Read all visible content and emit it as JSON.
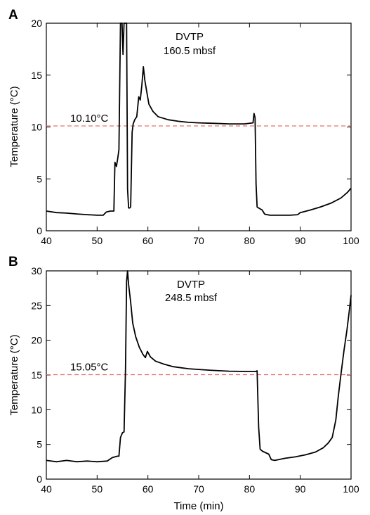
{
  "chart_data": [
    {
      "panel": "A",
      "type": "line",
      "title": "",
      "annotation": [
        "DVTP",
        "160.5 mbsf"
      ],
      "xlabel": "",
      "ylabel": "Temperature (°C)",
      "xlim": [
        40,
        100
      ],
      "ylim": [
        0,
        20
      ],
      "xticks": [
        40,
        50,
        60,
        70,
        80,
        90,
        100
      ],
      "yticks": [
        0,
        5,
        10,
        15,
        20
      ],
      "reference": {
        "value": 10.1,
        "label": "10.10°C",
        "color": "#e8706a"
      },
      "series": [
        {
          "color": "#000000",
          "x": [
            40,
            42,
            44,
            46,
            48,
            50,
            51.2,
            51.8,
            52.6,
            53.3,
            53.5,
            53.8,
            54.0,
            54.3,
            54.6,
            54.9,
            55.1,
            55.3,
            55.6,
            55.8,
            56.0,
            56.2,
            56.4,
            56.6,
            56.9,
            57.1,
            57.4,
            57.8,
            58.2,
            58.5,
            58.8,
            59.1,
            59.4,
            59.7,
            60.2,
            61,
            62,
            64,
            66,
            68,
            70,
            73,
            76,
            79,
            80.7,
            80.9,
            81.1,
            81.3,
            81.5,
            81.8,
            82.5,
            83,
            84,
            86,
            88,
            89.5,
            90,
            92,
            94,
            96,
            98,
            99.3,
            100
          ],
          "values": [
            1.9,
            1.75,
            1.7,
            1.62,
            1.55,
            1.5,
            1.5,
            1.8,
            1.9,
            1.9,
            6.6,
            6.2,
            6.8,
            7.8,
            20,
            20,
            17,
            20,
            20,
            20,
            4,
            2.2,
            2.2,
            2.3,
            9.5,
            10.3,
            10.7,
            11.0,
            12.9,
            12.6,
            14.0,
            15.8,
            14.5,
            13.6,
            12.2,
            11.5,
            11.0,
            10.7,
            10.55,
            10.45,
            10.4,
            10.35,
            10.3,
            10.3,
            10.4,
            11.3,
            10.9,
            4.5,
            2.3,
            2.2,
            2.0,
            1.6,
            1.5,
            1.5,
            1.5,
            1.55,
            1.75,
            2.0,
            2.3,
            2.65,
            3.15,
            3.7,
            4.1
          ]
        }
      ]
    },
    {
      "panel": "B",
      "type": "line",
      "title": "",
      "annotation": [
        "DVTP",
        "248.5 mbsf"
      ],
      "xlabel": "Time (min)",
      "ylabel": "Temperature (°C)",
      "xlim": [
        40,
        100
      ],
      "ylim": [
        0,
        30
      ],
      "xticks": [
        40,
        50,
        60,
        70,
        80,
        90,
        100
      ],
      "yticks": [
        0,
        5,
        10,
        15,
        20,
        25,
        30
      ],
      "reference": {
        "value": 15.05,
        "label": "15.05°C",
        "color": "#e8706a"
      },
      "series": [
        {
          "color": "#000000",
          "x": [
            40,
            42,
            44,
            46,
            48,
            50,
            52,
            53,
            54,
            54.3,
            54.6,
            55.0,
            55.3,
            55.6,
            55.8,
            56.0,
            56.2,
            56.6,
            57,
            57.6,
            58.3,
            59.0,
            59.5,
            59.9,
            60.5,
            61.5,
            63,
            65,
            68,
            72,
            76,
            80,
            81.2,
            81.5,
            81.8,
            82.1,
            82.6,
            83.2,
            83.8,
            84.3,
            85,
            87,
            89,
            91,
            93,
            94.5,
            95.5,
            96.3,
            97.0,
            97.5,
            98.0,
            98.6,
            99.2,
            99.7,
            100
          ],
          "values": [
            2.7,
            2.5,
            2.7,
            2.5,
            2.6,
            2.5,
            2.6,
            3.1,
            3.3,
            3.3,
            6.0,
            6.7,
            6.8,
            16.0,
            28.5,
            30,
            28.0,
            25.5,
            22.5,
            20.5,
            19.0,
            18.0,
            17.5,
            18.4,
            17.6,
            17.0,
            16.6,
            16.2,
            15.9,
            15.7,
            15.55,
            15.5,
            15.5,
            15.6,
            7.5,
            4.3,
            4.0,
            3.8,
            3.6,
            2.8,
            2.7,
            3.0,
            3.2,
            3.5,
            3.9,
            4.5,
            5.2,
            6.0,
            8.5,
            12.0,
            15.0,
            18.5,
            21.5,
            24.5,
            26.5
          ]
        }
      ]
    }
  ]
}
